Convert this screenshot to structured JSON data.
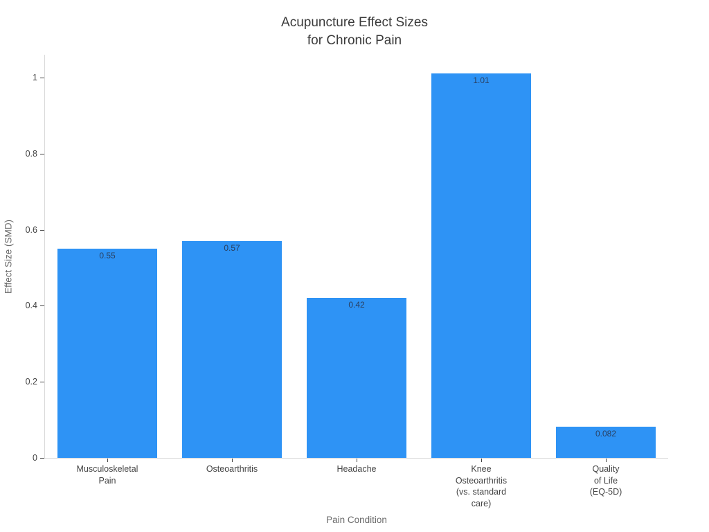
{
  "title_lines": {
    "line1": "Acupuncture Effect Sizes",
    "line2": "for Chronic Pain"
  },
  "chart_data": {
    "type": "bar",
    "title": "Acupuncture Effect Sizes for Chronic Pain",
    "xlabel": "Pain Condition",
    "ylabel": "Effect Size (SMD)",
    "categories": [
      "Musculoskeletal Pain",
      "Osteoarthritis",
      "Headache",
      "Knee Osteoarthritis (vs. standard care)",
      "Quality of Life (EQ-5D)"
    ],
    "category_label_lines": [
      [
        "Musculoskeletal",
        "Pain"
      ],
      [
        "Osteoarthritis"
      ],
      [
        "Headache"
      ],
      [
        "Knee",
        "Osteoarthritis",
        "(vs. standard",
        "care)"
      ],
      [
        "Quality",
        "of Life",
        "(EQ-5D)"
      ]
    ],
    "values": [
      0.55,
      0.57,
      0.42,
      1.01,
      0.082
    ],
    "value_labels": [
      "0.55",
      "0.57",
      "0.42",
      "1.01",
      "0.082"
    ],
    "y_ticks": [
      0,
      0.2,
      0.4,
      0.6,
      0.8,
      1
    ],
    "y_tick_labels": [
      "0",
      "0.2",
      "0.4",
      "0.6",
      "0.8",
      "1"
    ],
    "ylim": [
      0,
      1.06
    ],
    "grid": false,
    "legend": "none",
    "bar_color": "#2e93f5",
    "value_label_color": "#2a3f5f",
    "orientation": "vertical"
  }
}
